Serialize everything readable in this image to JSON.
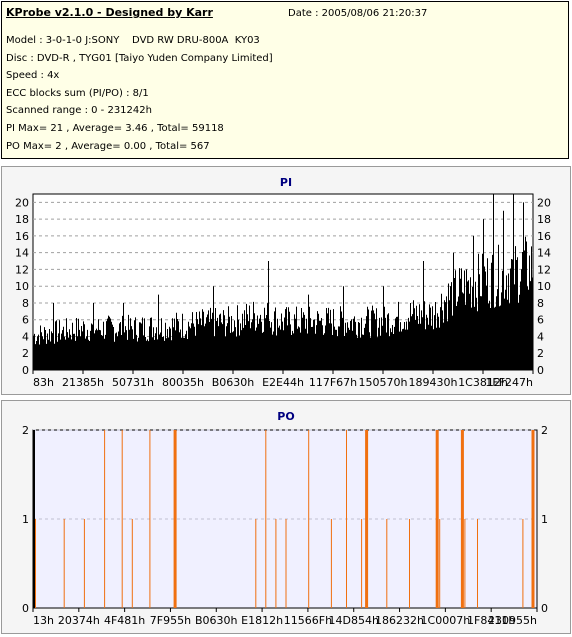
{
  "info": {
    "title": "KProbe v2.1.0 - Designed by Karr",
    "date": "Date : 2005/08/06 21:20:37",
    "lines": [
      "Model : 3-0-1-0 J:SONY    DVD RW DRU-800A  KY03",
      "Disc : DVD-R , TYG01 [Taiyo Yuden Company Limited]",
      "Speed : 4x",
      "ECC blocks sum (PI/PO) : 8/1",
      "Scanned range : 0 - 231242h",
      "PI Max= 21 , Average= 3.46 , Total= 59118",
      "PO Max= 2 , Average= 0.00 , Total= 567"
    ]
  },
  "colors": {
    "pi_bar": "#000000",
    "po_bar": "#f07010",
    "po_plot_bg": "#f0f0ff",
    "axis_title": "#000080",
    "grid": "#a0a0a0"
  },
  "chart_data": [
    {
      "type": "bar",
      "title": "PI",
      "ylim": [
        0,
        21
      ],
      "y_ticks": [
        0,
        2,
        4,
        6,
        8,
        10,
        12,
        14,
        16,
        18,
        20
      ],
      "x_tick_labels": [
        "83h",
        "21385h",
        "50731h",
        "80035h",
        "B0630h",
        "E2E44h",
        "117F67h",
        "150570h",
        "189430h",
        "1C3812h",
        "1FF247h"
      ],
      "grid": true,
      "envelope": [
        [
          0,
          5
        ],
        [
          0.05,
          5.5
        ],
        [
          0.1,
          6
        ],
        [
          0.2,
          6
        ],
        [
          0.3,
          6.5
        ],
        [
          0.4,
          7
        ],
        [
          0.45,
          8
        ],
        [
          0.5,
          7
        ],
        [
          0.6,
          7
        ],
        [
          0.7,
          7
        ],
        [
          0.75,
          8
        ],
        [
          0.8,
          8
        ],
        [
          0.82,
          10
        ],
        [
          0.86,
          12
        ],
        [
          0.9,
          13
        ],
        [
          0.95,
          14
        ],
        [
          1,
          15
        ]
      ],
      "spikes": [
        [
          0.04,
          8
        ],
        [
          0.12,
          8
        ],
        [
          0.18,
          8
        ],
        [
          0.25,
          9
        ],
        [
          0.36,
          10
        ],
        [
          0.47,
          13
        ],
        [
          0.55,
          9
        ],
        [
          0.62,
          10
        ],
        [
          0.7,
          10
        ],
        [
          0.78,
          13
        ],
        [
          0.84,
          14
        ],
        [
          0.88,
          16
        ],
        [
          0.9,
          18
        ],
        [
          0.92,
          21
        ],
        [
          0.94,
          19
        ],
        [
          0.96,
          21
        ],
        [
          0.98,
          20
        ]
      ]
    },
    {
      "type": "bar",
      "title": "PO",
      "ylim": [
        0,
        2
      ],
      "y_ticks": [
        0,
        1,
        2
      ],
      "x_tick_labels": [
        "13h",
        "20374h",
        "4F481h",
        "7F955h",
        "B0630h",
        "E1812h",
        "11566Fh",
        "14D854h",
        "186232h",
        "1C0007h",
        "1F8411h",
        "230955h"
      ],
      "grid": true,
      "spikes": [
        {
          "x": 0.0,
          "y": 2,
          "w": 2
        },
        {
          "x": 0.003,
          "y": 1,
          "w": 1
        },
        {
          "x": 0.06,
          "y": 1,
          "w": 1
        },
        {
          "x": 0.1,
          "y": 1,
          "w": 1
        },
        {
          "x": 0.14,
          "y": 2,
          "w": 1
        },
        {
          "x": 0.175,
          "y": 2,
          "w": 1
        },
        {
          "x": 0.195,
          "y": 1,
          "w": 1
        },
        {
          "x": 0.23,
          "y": 2,
          "w": 1
        },
        {
          "x": 0.28,
          "y": 2,
          "w": 3
        },
        {
          "x": 0.44,
          "y": 1,
          "w": 1
        },
        {
          "x": 0.46,
          "y": 2,
          "w": 1
        },
        {
          "x": 0.48,
          "y": 1,
          "w": 1
        },
        {
          "x": 0.5,
          "y": 1,
          "w": 1
        },
        {
          "x": 0.545,
          "y": 2,
          "w": 1
        },
        {
          "x": 0.59,
          "y": 1,
          "w": 1
        },
        {
          "x": 0.62,
          "y": 2,
          "w": 1
        },
        {
          "x": 0.65,
          "y": 1,
          "w": 1
        },
        {
          "x": 0.66,
          "y": 2,
          "w": 3
        },
        {
          "x": 0.7,
          "y": 1,
          "w": 1
        },
        {
          "x": 0.745,
          "y": 1,
          "w": 1
        },
        {
          "x": 0.8,
          "y": 2,
          "w": 3
        },
        {
          "x": 0.805,
          "y": 1,
          "w": 1
        },
        {
          "x": 0.85,
          "y": 2,
          "w": 3
        },
        {
          "x": 0.855,
          "y": 1,
          "w": 1
        },
        {
          "x": 0.88,
          "y": 1,
          "w": 1
        },
        {
          "x": 0.97,
          "y": 1,
          "w": 1
        },
        {
          "x": 0.99,
          "y": 2,
          "w": 3
        }
      ]
    }
  ]
}
